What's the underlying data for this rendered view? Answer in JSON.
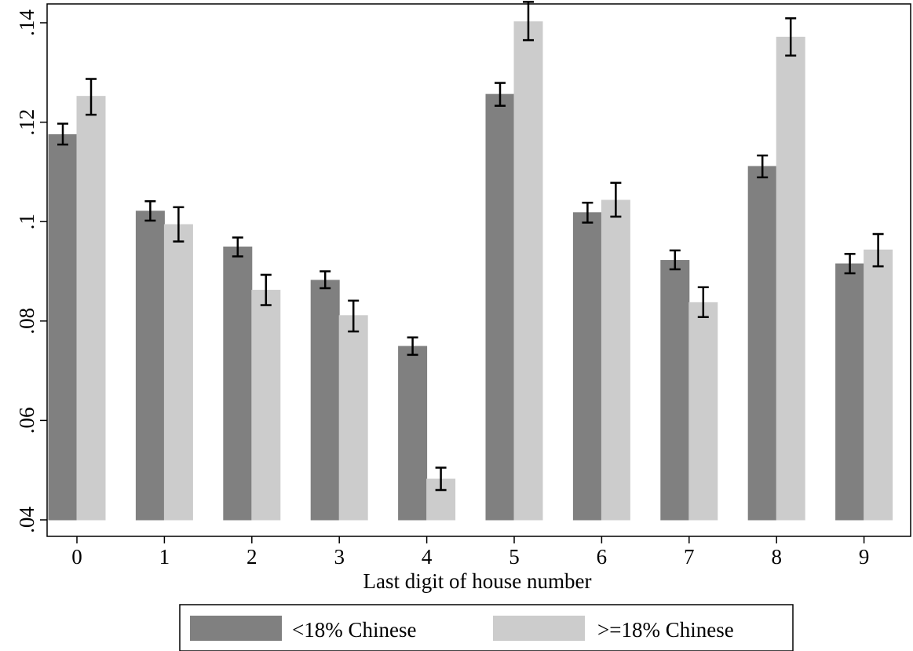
{
  "chart_data": {
    "type": "bar",
    "xlabel": "Last digit of house number",
    "ylabel": "",
    "categories": [
      "0",
      "1",
      "2",
      "3",
      "4",
      "5",
      "6",
      "7",
      "8",
      "9"
    ],
    "ylim": [
      0.04,
      0.143
    ],
    "baseline": 0.04,
    "yticks": [
      0.04,
      0.06,
      0.08,
      0.1,
      0.12,
      0.14
    ],
    "ytick_labels": [
      ".04",
      ".06",
      ".08",
      ".1",
      ".12",
      ".14"
    ],
    "grid": false,
    "legend_position": "bottom",
    "series": [
      {
        "name": "<18% Chinese",
        "color": "#808080",
        "values": [
          0.1175,
          0.1021,
          0.0949,
          0.0882,
          0.0749,
          0.1256,
          0.1018,
          0.0922,
          0.1111,
          0.0915
        ],
        "err_low": [
          0.1155,
          0.1002,
          0.093,
          0.0866,
          0.0732,
          0.1233,
          0.0998,
          0.0904,
          0.1089,
          0.0896
        ],
        "err_high": [
          0.1197,
          0.1041,
          0.0968,
          0.09,
          0.0767,
          0.1279,
          0.1038,
          0.0942,
          0.1133,
          0.0935
        ]
      },
      {
        "name": ">=18% Chinese",
        "color": "#cccccc",
        "values": [
          0.1252,
          0.0994,
          0.0862,
          0.0811,
          0.0482,
          0.1402,
          0.1043,
          0.0837,
          0.1371,
          0.0943
        ],
        "err_low": [
          0.1215,
          0.096,
          0.0832,
          0.0779,
          0.046,
          0.1365,
          0.101,
          0.0808,
          0.1334,
          0.091
        ],
        "err_high": [
          0.1287,
          0.1029,
          0.0893,
          0.0841,
          0.0505,
          0.1442,
          0.1078,
          0.0868,
          0.1409,
          0.0975
        ]
      }
    ]
  }
}
